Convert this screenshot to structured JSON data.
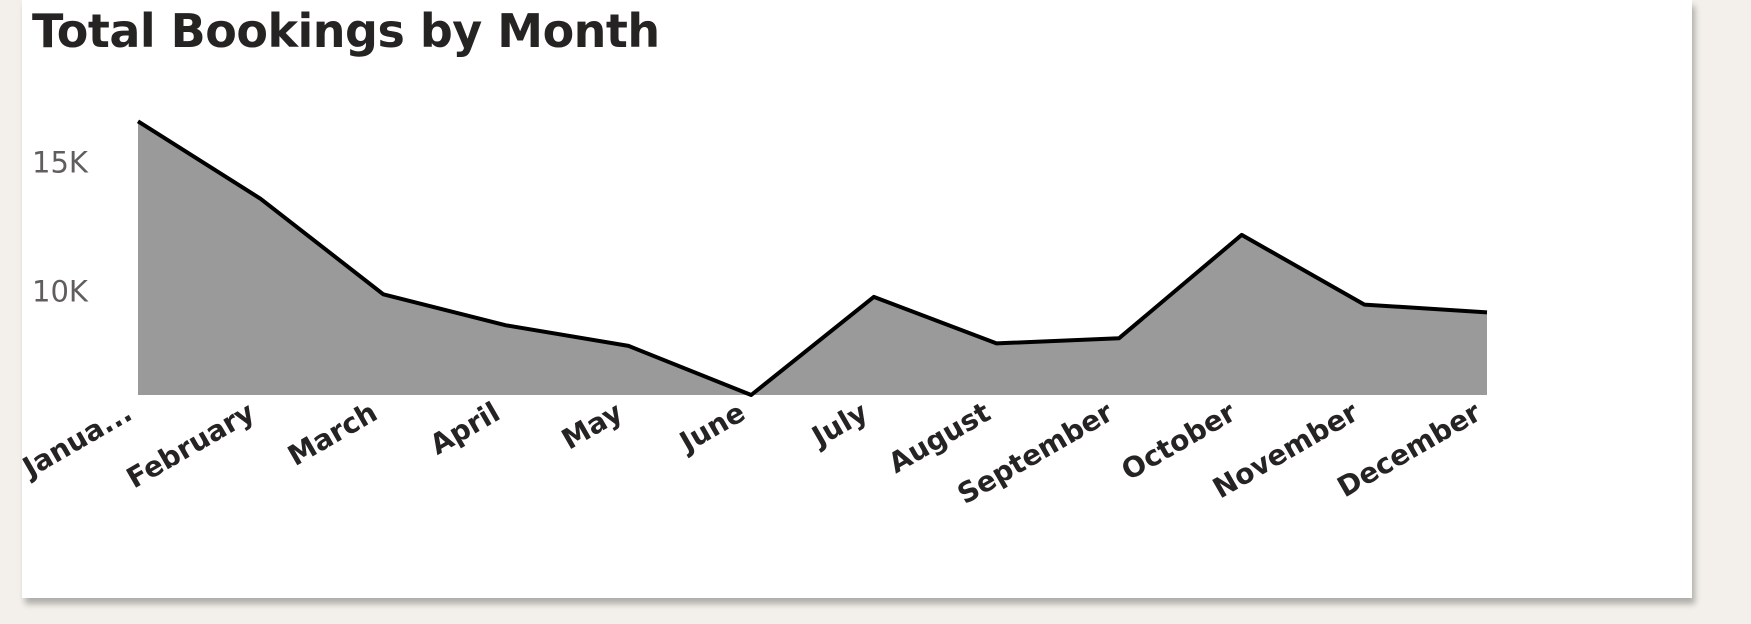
{
  "title": "Total Bookings by Month",
  "chart_data": {
    "type": "area",
    "title": "Total Bookings by Month",
    "xlabel": "",
    "ylabel": "",
    "categories": [
      "January",
      "February",
      "March",
      "April",
      "May",
      "June",
      "July",
      "August",
      "September",
      "October",
      "November",
      "December"
    ],
    "category_labels": [
      "Janua...",
      "February",
      "March",
      "April",
      "May",
      "June",
      "July",
      "August",
      "September",
      "October",
      "November",
      "December"
    ],
    "values": [
      16600,
      13600,
      9900,
      8700,
      7900,
      6000,
      9800,
      8000,
      8200,
      12200,
      9500,
      9200
    ],
    "ylim": [
      6000,
      17000
    ],
    "yticks": [
      10000,
      15000
    ],
    "ytick_labels": [
      "10K",
      "15K"
    ],
    "grid": false,
    "legend": "none",
    "colors": {
      "fill": "#9a9a9a",
      "line": "#000000"
    }
  }
}
